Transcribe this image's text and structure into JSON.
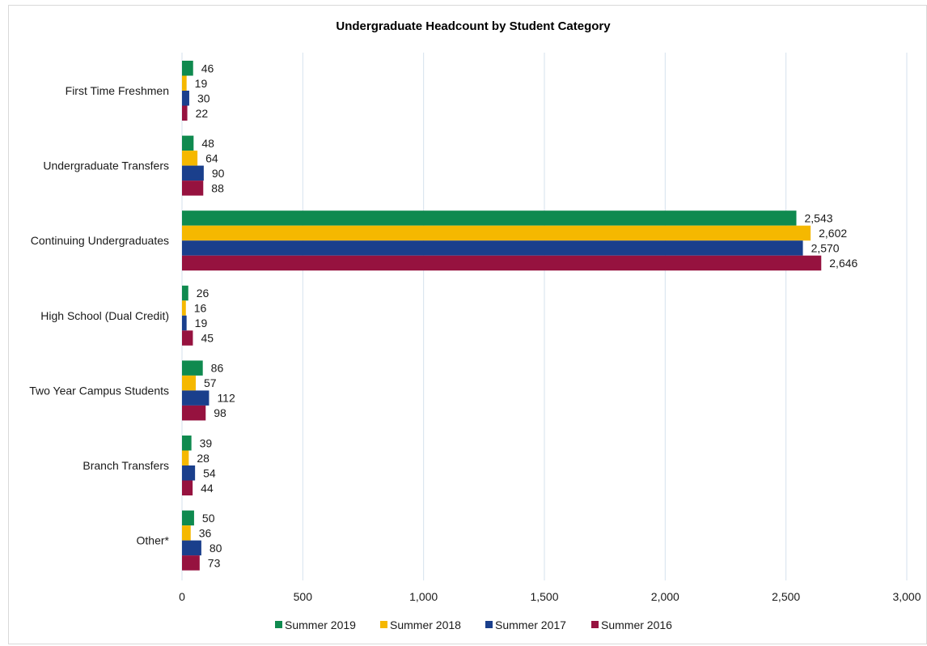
{
  "chart_data": {
    "type": "bar",
    "orientation": "horizontal",
    "title": "Undergraduate Headcount by Student Category",
    "categories": [
      "First Time Freshmen",
      "Undergraduate Transfers",
      "Continuing Undergraduates",
      "High School (Dual Credit)",
      "Two Year Campus Students",
      "Branch Transfers",
      "Other*"
    ],
    "series": [
      {
        "name": "Summer 2019",
        "color": "#0f8a4f",
        "values": [
          46,
          48,
          2543,
          26,
          86,
          39,
          50
        ],
        "labels": [
          "46",
          "48",
          "2,543",
          "26",
          "86",
          "39",
          "50"
        ]
      },
      {
        "name": "Summer 2018",
        "color": "#f5b800",
        "values": [
          19,
          64,
          2602,
          16,
          57,
          28,
          36
        ],
        "labels": [
          "19",
          "64",
          "2,602",
          "16",
          "57",
          "28",
          "36"
        ]
      },
      {
        "name": "Summer 2017",
        "color": "#1a3f8c",
        "values": [
          30,
          90,
          2570,
          19,
          112,
          54,
          80
        ],
        "labels": [
          "30",
          "90",
          "2,570",
          "19",
          "112",
          "54",
          "80"
        ]
      },
      {
        "name": "Summer 2016",
        "color": "#96123f",
        "values": [
          22,
          88,
          2646,
          45,
          98,
          44,
          73
        ],
        "labels": [
          "22",
          "88",
          "2,646",
          "45",
          "98",
          "44",
          "73"
        ]
      }
    ],
    "xlim": [
      0,
      3000
    ],
    "ticks": [
      0,
      500,
      1000,
      1500,
      2000,
      2500,
      3000
    ],
    "tick_labels": [
      "0",
      "500",
      "1,000",
      "1,500",
      "2,000",
      "2,500",
      "3,000"
    ],
    "grid": true,
    "legend_position": "bottom"
  }
}
